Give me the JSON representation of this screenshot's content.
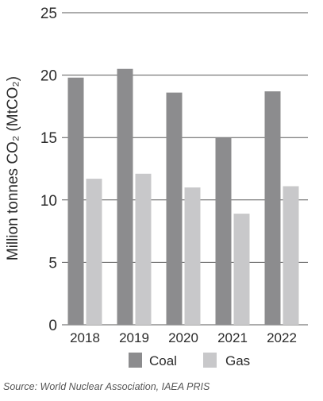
{
  "chart_data": {
    "type": "bar",
    "categories": [
      "2018",
      "2019",
      "2020",
      "2021",
      "2022"
    ],
    "series": [
      {
        "name": "Coal",
        "values": [
          19.8,
          20.5,
          18.6,
          15.0,
          18.7
        ],
        "color": "#8c8c8e"
      },
      {
        "name": "Gas",
        "values": [
          11.7,
          12.1,
          11.0,
          8.9,
          11.1
        ],
        "color": "#c8c8ca"
      }
    ],
    "ylabel": "Million tonnes CO₂ (MtCO₂)",
    "ylim": [
      0,
      25
    ],
    "yticks": [
      0,
      5,
      10,
      15,
      20,
      25
    ],
    "grid": true,
    "legend": "bottom"
  },
  "source": "Source: World Nuclear Association, IAEA PRIS"
}
